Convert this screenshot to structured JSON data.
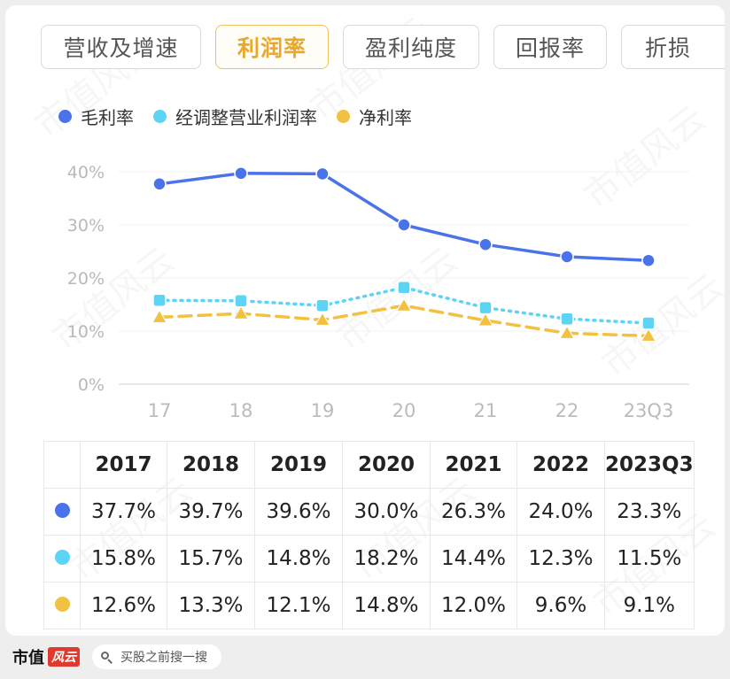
{
  "tabs": [
    {
      "label": "营收及增速",
      "active": false
    },
    {
      "label": "利润率",
      "active": true
    },
    {
      "label": "盈利纯度",
      "active": false
    },
    {
      "label": "回报率",
      "active": false
    },
    {
      "label": "折损",
      "active": false
    }
  ],
  "colors": {
    "gross": "#4a72ea",
    "adjusted": "#5cd4f5",
    "net": "#f3c141"
  },
  "chart_data": {
    "type": "line",
    "categories": [
      "17",
      "18",
      "19",
      "20",
      "21",
      "22",
      "23Q3"
    ],
    "series": [
      {
        "name": "毛利率",
        "color": "#4a72ea",
        "style": "solid",
        "marker": "circle",
        "values": [
          37.7,
          39.7,
          39.6,
          30.0,
          26.3,
          24.0,
          23.3
        ]
      },
      {
        "name": "经调整营业利润率",
        "color": "#5cd4f5",
        "style": "dotted",
        "marker": "square",
        "values": [
          15.8,
          15.7,
          14.8,
          18.2,
          14.4,
          12.3,
          11.5
        ]
      },
      {
        "name": "净利率",
        "color": "#f3c141",
        "style": "dashed",
        "marker": "triangle",
        "values": [
          12.6,
          13.3,
          12.1,
          14.8,
          12.0,
          9.6,
          9.1
        ]
      }
    ],
    "yticks": [
      "0%",
      "10%",
      "20%",
      "30%",
      "40%"
    ],
    "ylim": [
      0,
      40
    ],
    "xlabel": "",
    "ylabel": ""
  },
  "table": {
    "headers": [
      "2017",
      "2018",
      "2019",
      "2020",
      "2021",
      "2022",
      "2023Q3"
    ],
    "rows": [
      {
        "color": "#4a72ea",
        "cells": [
          "37.7%",
          "39.7%",
          "39.6%",
          "30.0%",
          "26.3%",
          "24.0%",
          "23.3%"
        ]
      },
      {
        "color": "#5cd4f5",
        "cells": [
          "15.8%",
          "15.7%",
          "14.8%",
          "18.2%",
          "14.4%",
          "12.3%",
          "11.5%"
        ]
      },
      {
        "color": "#f3c141",
        "cells": [
          "12.6%",
          "13.3%",
          "12.1%",
          "14.8%",
          "12.0%",
          "9.6%",
          "9.1%"
        ]
      }
    ]
  },
  "footer": {
    "brand": "市值",
    "brand_logo": "风云",
    "search_text": "买股之前搜一搜"
  },
  "watermark": "市值风云"
}
